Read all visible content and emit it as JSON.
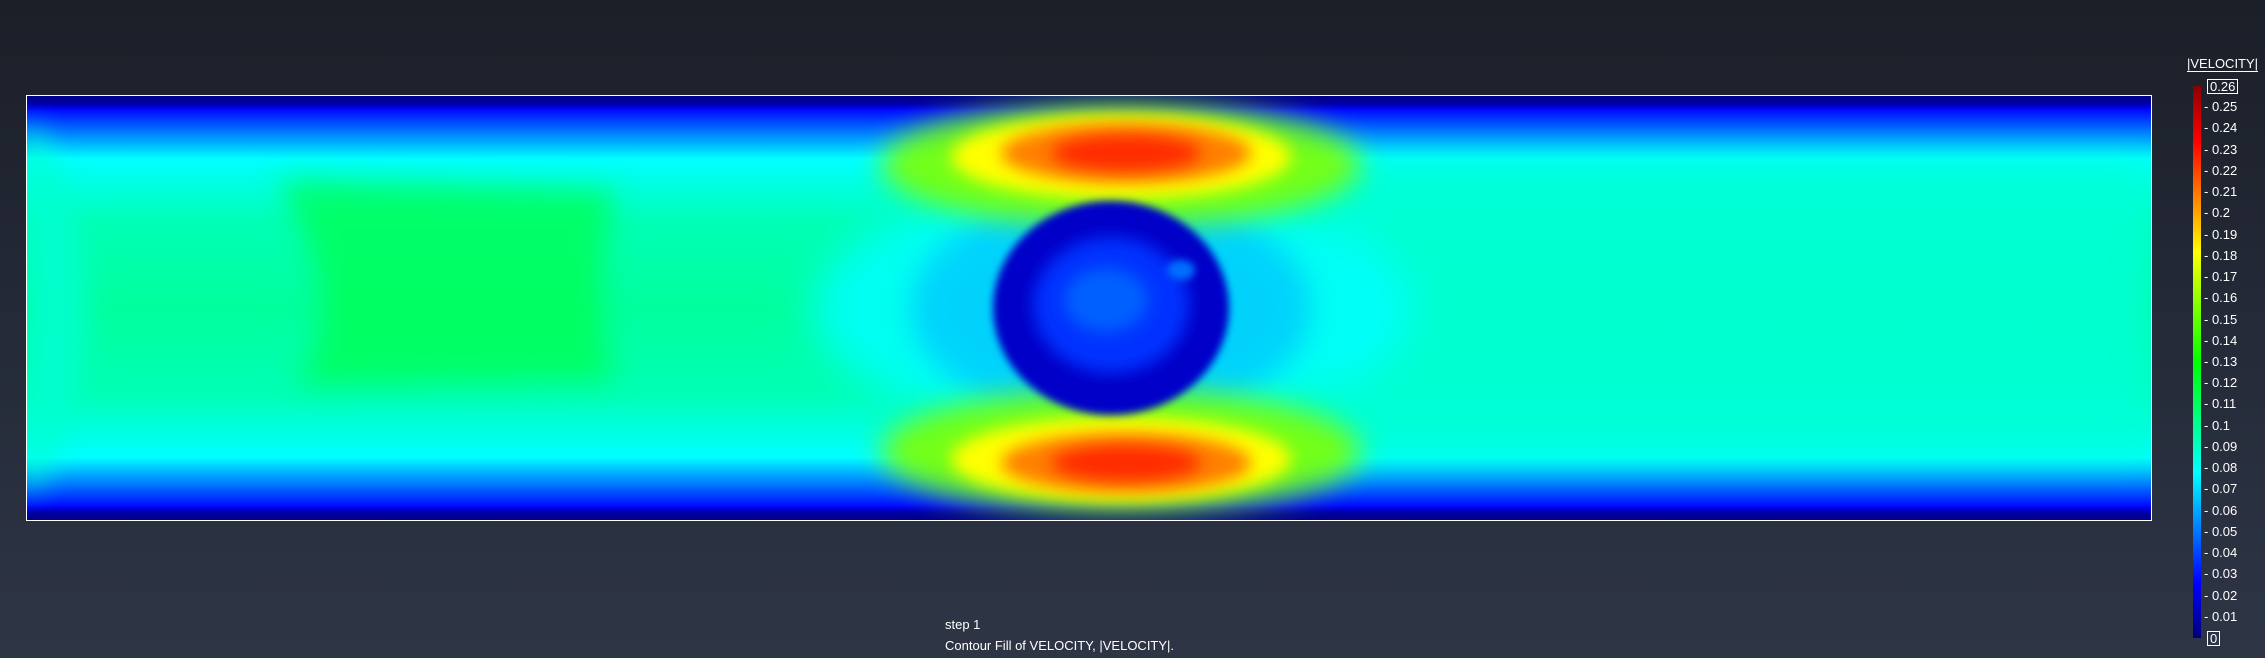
{
  "legend": {
    "title": "|VELOCITY|",
    "max_label": "0.26",
    "min_label": "0",
    "ticks": [
      "0.25",
      "0.24",
      "0.23",
      "0.22",
      "0.21",
      "0.2",
      "0.19",
      "0.18",
      "0.17",
      "0.16",
      "0.15",
      "0.14",
      "0.13",
      "0.12",
      "0.11",
      "0.1",
      "0.09",
      "0.08",
      "0.07",
      "0.06",
      "0.05",
      "0.04",
      "0.03",
      "0.02",
      "0.01"
    ],
    "colormap": [
      "#00007a",
      "#0000ff",
      "#0080ff",
      "#00ffff",
      "#00ff80",
      "#00ff00",
      "#80ff00",
      "#ffff00",
      "#ff8000",
      "#ff0000",
      "#8b0000"
    ]
  },
  "caption": {
    "line1": "step 1",
    "line2": "Contour Fill of VELOCITY, |VELOCITY|."
  },
  "colors": {
    "background_top": "#1b1f28",
    "background_bottom": "#2e3545",
    "domain_border": "#ffffff"
  }
}
